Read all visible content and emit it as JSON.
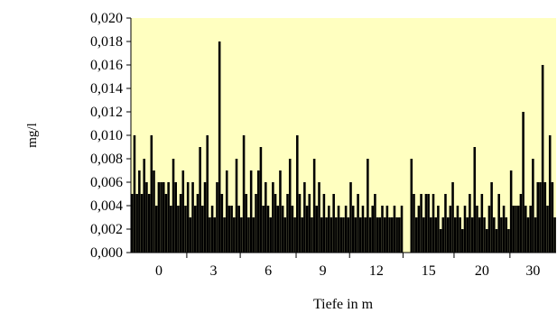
{
  "chart_data": {
    "type": "bar",
    "title": "",
    "xlabel": "Tiefe in m",
    "ylabel": "mg/l",
    "ylim": [
      0,
      0.02
    ],
    "y_ticks": [
      "0,000",
      "0,002",
      "0,004",
      "0,006",
      "0,008",
      "0,010",
      "0,012",
      "0,014",
      "0,016",
      "0,018",
      "0,020"
    ],
    "x_tick_labels": [
      "0",
      "3",
      "6",
      "9",
      "12",
      "15",
      "20",
      "30"
    ],
    "plot_background": "#ffffc0",
    "bar_color": "#000000",
    "grid": false,
    "legend": "none",
    "groups": [
      {
        "label": "0",
        "values": [
          0.005,
          0.01,
          0.005,
          0.007,
          0.005,
          0.008,
          0.006,
          0.005,
          0.01,
          0.007,
          0.004,
          0.006,
          0.006,
          0.006,
          0.005,
          0.006,
          0.004,
          0.008,
          0.006,
          0.004,
          0.005,
          0.007,
          0.004
        ]
      },
      {
        "label": "3",
        "values": [
          0.006,
          0.003,
          0.006,
          0.004,
          0.005,
          0.009,
          0.004,
          0.006,
          0.01,
          0.003,
          0.004,
          0.003,
          0.006,
          0.018,
          0.005,
          0.003,
          0.007,
          0.004,
          0.004,
          0.003,
          0.008,
          0.004
        ]
      },
      {
        "label": "6",
        "values": [
          0.003,
          0.01,
          0.005,
          0.003,
          0.007,
          0.003,
          0.005,
          0.007,
          0.009,
          0.004,
          0.006,
          0.004,
          0.003,
          0.006,
          0.005,
          0.004,
          0.007,
          0.004,
          0.003,
          0.005,
          0.008,
          0.004,
          0.003
        ]
      },
      {
        "label": "9",
        "values": [
          0.01,
          0.005,
          0.003,
          0.006,
          0.004,
          0.005,
          0.003,
          0.008,
          0.004,
          0.006,
          0.003,
          0.005,
          0.003,
          0.004,
          0.003,
          0.005,
          0.003,
          0.004,
          0.003,
          0.003,
          0.004,
          0.003
        ]
      },
      {
        "label": "12",
        "values": [
          0.006,
          0.004,
          0.003,
          0.005,
          0.003,
          0.004,
          0.003,
          0.008,
          0.003,
          0.004,
          0.005,
          0.003,
          0.003,
          0.004,
          0.003,
          0.004,
          0.003,
          0.003,
          0.004,
          0.003,
          0.003,
          0.004
        ]
      },
      {
        "label": "15",
        "values": [
          0.0,
          0.0,
          0.0,
          0.008,
          0.005,
          0.003,
          0.004,
          0.005,
          0.003,
          0.005,
          0.005,
          0.003,
          0.005,
          0.003,
          0.004,
          0.002,
          0.003,
          0.005,
          0.003,
          0.004,
          0.006
        ]
      },
      {
        "label": "20",
        "values": [
          0.003,
          0.004,
          0.003,
          0.002,
          0.004,
          0.003,
          0.005,
          0.003,
          0.009,
          0.004,
          0.003,
          0.005,
          0.003,
          0.002,
          0.004,
          0.006,
          0.003,
          0.002,
          0.005,
          0.003,
          0.004,
          0.003,
          0.002
        ]
      },
      {
        "label": "30",
        "values": [
          0.007,
          0.004,
          0.004,
          0.004,
          0.005,
          0.012,
          0.004,
          0.003,
          0.004,
          0.008,
          0.003,
          0.006,
          0.006,
          0.016,
          0.006,
          0.004,
          0.01,
          0.006,
          0.003
        ]
      }
    ]
  }
}
